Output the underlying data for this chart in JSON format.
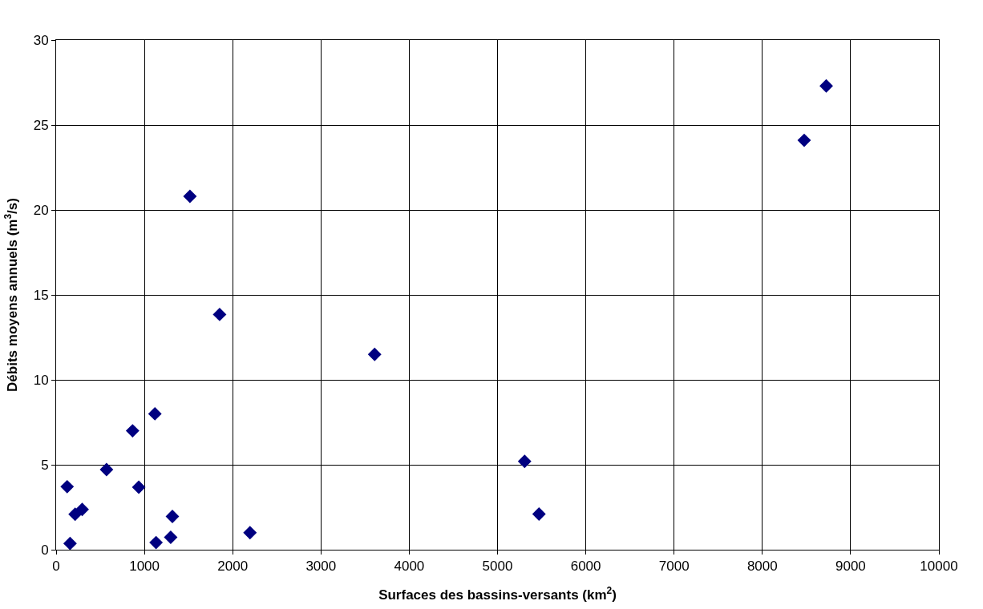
{
  "chart_data": {
    "type": "scatter",
    "xlabel": "Surfaces des bassins-versants (km$^{2}$)",
    "ylabel": "Débits moyens annuels (m$^{3}$/s)",
    "x": [
      125,
      158,
      215,
      295,
      571,
      866,
      936,
      1119,
      1132,
      1298,
      1317,
      2196,
      1516,
      1852,
      3608,
      5307,
      5470,
      8474,
      8724
    ],
    "values": [
      3.71,
      0.37,
      2.09,
      2.37,
      4.72,
      7.0,
      3.68,
      8.0,
      0.42,
      0.73,
      1.96,
      1.0,
      20.8,
      13.85,
      11.5,
      5.2,
      2.1,
      24.1,
      27.3
    ],
    "color": "#000080",
    "marker": "diamond",
    "xlim": [
      0,
      10000
    ],
    "xticks": [
      0,
      1000,
      2000,
      3000,
      4000,
      5000,
      6000,
      7000,
      8000,
      9000,
      10000
    ],
    "ylim": [
      0,
      30
    ],
    "yticks": [
      0,
      5,
      10,
      15,
      20,
      25,
      30
    ],
    "grid": true,
    "legend": false
  }
}
